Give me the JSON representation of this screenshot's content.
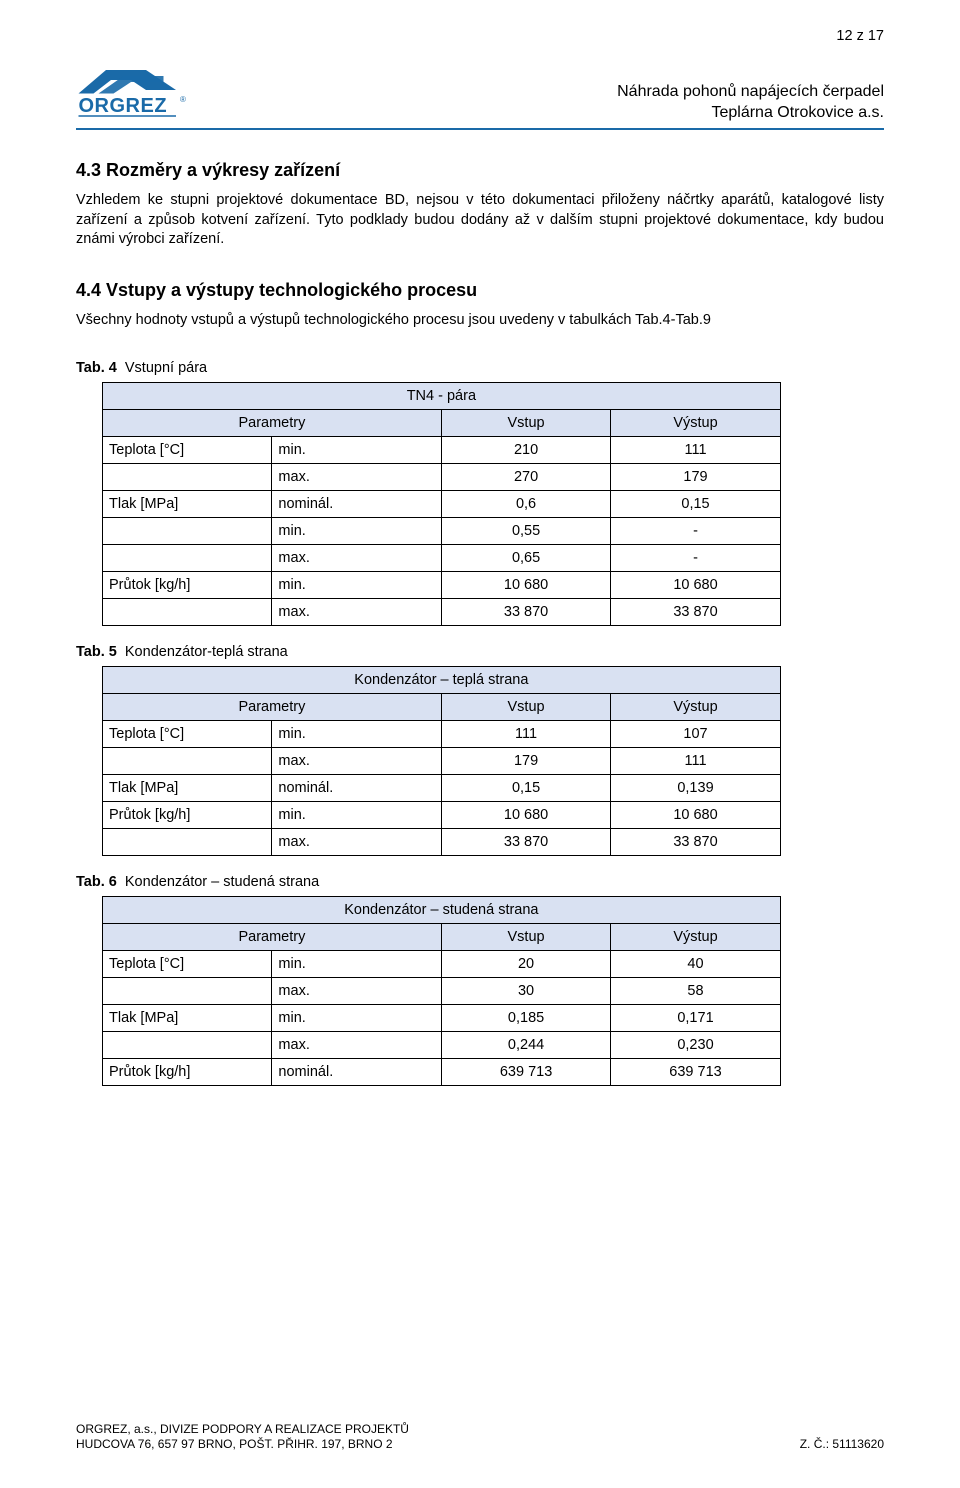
{
  "page_number": "12 z 17",
  "header": {
    "line1": "Náhrada pohonů napájecích čerpadel",
    "line2": "Teplárna Otrokovice a.s."
  },
  "logo": {
    "text": "ORGREZ",
    "color_primary": "#1a6aa8",
    "color_accent": "#1a6aa8",
    "reg_mark": "®"
  },
  "section43": {
    "heading": "4.3 Rozměry a výkresy zařízení",
    "paragraph": "Vzhledem ke stupni projektové dokumentace BD, nejsou v této dokumentaci přiloženy náčrtky aparátů, katalogové listy zařízení a způsob kotvení zařízení. Tyto podklady budou dodány až v dalším stupni projektové dokumentace, kdy budou známi výrobci zařízení."
  },
  "section44": {
    "heading": "4.4 Vstupy a výstupy technologického procesu",
    "paragraph": "Všechny hodnoty vstupů a výstupů technologického procesu jsou uvedeny v tabulkách Tab.4-Tab.9"
  },
  "tab4": {
    "caption_prefix": "Tab. 4",
    "caption_text": "Vstupní pára",
    "title": "TN4 - pára",
    "col_param": "Parametry",
    "col_vstup": "Vstup",
    "col_vystup": "Výstup",
    "rows": [
      {
        "p": "Teplota [°C]",
        "s": "min.",
        "v1": "210",
        "v2": "111"
      },
      {
        "p": "",
        "s": "max.",
        "v1": "270",
        "v2": "179"
      },
      {
        "p": "Tlak [MPa]",
        "s": "nominál.",
        "v1": "0,6",
        "v2": "0,15"
      },
      {
        "p": "",
        "s": "min.",
        "v1": "0,55",
        "v2": "-"
      },
      {
        "p": "",
        "s": "max.",
        "v1": "0,65",
        "v2": "-"
      },
      {
        "p": "Průtok [kg/h]",
        "s": "min.",
        "v1": "10 680",
        "v2": "10 680"
      },
      {
        "p": "",
        "s": "max.",
        "v1": "33 870",
        "v2": "33 870"
      }
    ]
  },
  "tab5": {
    "caption_prefix": "Tab. 5",
    "caption_text": "Kondenzátor-teplá strana",
    "title": "Kondenzátor – teplá strana",
    "col_param": "Parametry",
    "col_vstup": "Vstup",
    "col_vystup": "Výstup",
    "rows": [
      {
        "p": "Teplota [°C]",
        "s": "min.",
        "v1": "111",
        "v2": "107"
      },
      {
        "p": "",
        "s": "max.",
        "v1": "179",
        "v2": "111"
      },
      {
        "p": "Tlak [MPa]",
        "s": "nominál.",
        "v1": "0,15",
        "v2": "0,139"
      },
      {
        "p": "Průtok [kg/h]",
        "s": "min.",
        "v1": "10 680",
        "v2": "10 680"
      },
      {
        "p": "",
        "s": "max.",
        "v1": "33 870",
        "v2": "33 870"
      }
    ]
  },
  "tab6": {
    "caption_prefix": "Tab. 6",
    "caption_text": "Kondenzátor – studená strana",
    "title": "Kondenzátor – studená strana",
    "col_param": "Parametry",
    "col_vstup": "Vstup",
    "col_vystup": "Výstup",
    "rows": [
      {
        "p": "Teplota [°C]",
        "s": "min.",
        "v1": "20",
        "v2": "40"
      },
      {
        "p": "",
        "s": "max.",
        "v1": "30",
        "v2": "58"
      },
      {
        "p": "Tlak [MPa]",
        "s": "min.",
        "v1": "0,185",
        "v2": "0,171"
      },
      {
        "p": "",
        "s": "max.",
        "v1": "0,244",
        "v2": "0,230"
      },
      {
        "p": "Průtok [kg/h]",
        "s": "nominál.",
        "v1": "639 713",
        "v2": "639 713"
      }
    ]
  },
  "footer": {
    "left1": "ORGREZ, a.s., DIVIZE PODPORY A REALIZACE PROJEKTŮ",
    "left2": "HUDCOVA 76, 657 97 BRNO, POŠT. PŘIHR. 197, BRNO 2",
    "right": "Z. Č.: 51113620"
  },
  "style": {
    "header_border_color": "#1a6aa8",
    "table_header_bg": "#d9e1f2"
  }
}
